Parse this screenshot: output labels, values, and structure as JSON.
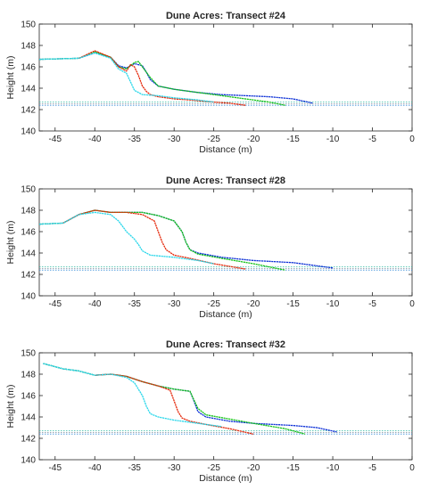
{
  "chart_data": [
    {
      "type": "line",
      "title": "Dune Acres: Transect #24",
      "xlabel": "Distance (m)",
      "ylabel": "Height (m)",
      "xlim": [
        -47,
        0
      ],
      "ylim": [
        140,
        150
      ],
      "xticks": [
        "-45",
        "-40",
        "-35",
        "-30",
        "-25",
        "-20",
        "-15",
        "-10",
        "-5",
        "0"
      ],
      "yticks": [
        "140",
        "142",
        "144",
        "146",
        "148",
        "150"
      ],
      "grid": false,
      "water_levels": [
        142.4,
        142.55,
        142.7
      ],
      "series": [
        {
          "color": "#0b2fd6",
          "x": [
            -47,
            -42,
            -40,
            -38,
            -37,
            -36,
            -35,
            -34,
            -33.5,
            -33,
            -32,
            -30,
            -27,
            -24,
            -21,
            -18,
            -15,
            -12.5
          ],
          "y": [
            146.7,
            146.8,
            147.3,
            146.9,
            146.1,
            145.9,
            146.3,
            146.1,
            145.5,
            144.8,
            144.2,
            143.9,
            143.6,
            143.4,
            143.3,
            143.2,
            143.0,
            142.6
          ]
        },
        {
          "color": "#15c21a",
          "x": [
            -47,
            -42,
            -40,
            -38,
            -37,
            -36,
            -35,
            -34.5,
            -34,
            -33,
            -32,
            -30,
            -27,
            -24,
            -21,
            -18,
            -16
          ],
          "y": [
            146.7,
            146.8,
            147.4,
            146.9,
            146.0,
            145.8,
            146.4,
            146.5,
            146.0,
            145.0,
            144.2,
            143.9,
            143.6,
            143.3,
            143.0,
            142.7,
            142.4
          ]
        },
        {
          "color": "#e52b0e",
          "x": [
            -42,
            -40,
            -38,
            -37,
            -36,
            -35.5,
            -35,
            -34.5,
            -34,
            -33.5,
            -33,
            -32.5,
            -32,
            -30,
            -28,
            -25,
            -23,
            -21
          ],
          "y": [
            146.8,
            147.5,
            146.9,
            146.0,
            145.6,
            146.2,
            146.0,
            145.2,
            144.2,
            143.7,
            143.4,
            143.3,
            143.2,
            143.0,
            142.9,
            142.7,
            142.6,
            142.4
          ]
        },
        {
          "color": "#2ad7ea",
          "x": [
            -47,
            -42,
            -40,
            -38,
            -37,
            -36,
            -35.5,
            -35,
            -34.5,
            -34,
            -32,
            -30,
            -27,
            -25
          ],
          "y": [
            146.7,
            146.8,
            147.3,
            146.8,
            145.8,
            145.4,
            144.6,
            143.8,
            143.6,
            143.4,
            143.3,
            143.1,
            142.9,
            142.7
          ]
        }
      ]
    },
    {
      "type": "line",
      "title": "Dune Acres: Transect #28",
      "xlabel": "Distance (m)",
      "ylabel": "Height (m)",
      "xlim": [
        -47,
        0
      ],
      "ylim": [
        140,
        150
      ],
      "xticks": [
        "-45",
        "-40",
        "-35",
        "-30",
        "-25",
        "-20",
        "-15",
        "-10",
        "-5",
        "0"
      ],
      "yticks": [
        "140",
        "142",
        "144",
        "146",
        "148",
        "150"
      ],
      "grid": false,
      "water_levels": [
        142.4,
        142.55,
        142.7
      ],
      "series": [
        {
          "color": "#0b2fd6",
          "x": [
            -47,
            -44,
            -42,
            -40,
            -38,
            -36,
            -34,
            -32,
            -30,
            -29,
            -28.5,
            -28,
            -27,
            -24,
            -20,
            -15,
            -10
          ],
          "y": [
            146.7,
            146.8,
            147.6,
            148.0,
            147.8,
            147.8,
            147.8,
            147.5,
            147.0,
            146.0,
            145.0,
            144.3,
            144.0,
            143.6,
            143.3,
            143.1,
            142.6
          ]
        },
        {
          "color": "#15c21a",
          "x": [
            -47,
            -44,
            -42,
            -40,
            -38,
            -36,
            -34,
            -32,
            -30,
            -29,
            -28.5,
            -28,
            -27,
            -24,
            -20,
            -16
          ],
          "y": [
            146.7,
            146.8,
            147.6,
            148.0,
            147.8,
            147.8,
            147.8,
            147.5,
            147.0,
            146.0,
            145.0,
            144.3,
            143.9,
            143.5,
            143.0,
            142.4
          ]
        },
        {
          "color": "#e52b0e",
          "x": [
            -44,
            -42,
            -40,
            -38,
            -36,
            -34,
            -32.5,
            -32,
            -31.5,
            -31,
            -30,
            -28,
            -25,
            -21
          ],
          "y": [
            146.8,
            147.6,
            148.0,
            147.8,
            147.8,
            147.6,
            147.0,
            146.0,
            145.0,
            144.3,
            143.8,
            143.5,
            143.0,
            142.5
          ]
        },
        {
          "color": "#2ad7ea",
          "x": [
            -47,
            -44,
            -42,
            -40,
            -38,
            -37,
            -36,
            -35,
            -34.5,
            -34,
            -33,
            -30,
            -27,
            -25
          ],
          "y": [
            146.7,
            146.8,
            147.6,
            147.8,
            147.6,
            147.0,
            146.0,
            145.3,
            144.8,
            144.2,
            143.8,
            143.6,
            143.3,
            143.0
          ]
        }
      ]
    },
    {
      "type": "line",
      "title": "Dune Acres: Transect #32",
      "xlabel": "Distance (m)",
      "ylabel": "Height (m)",
      "xlim": [
        -47,
        0
      ],
      "ylim": [
        140,
        150
      ],
      "xticks": [
        "-45",
        "-40",
        "-35",
        "-30",
        "-25",
        "-20",
        "-15",
        "-10",
        "-5",
        "0"
      ],
      "yticks": [
        "140",
        "142",
        "144",
        "146",
        "148",
        "150"
      ],
      "grid": false,
      "water_levels": [
        142.4,
        142.55,
        142.7
      ],
      "series": [
        {
          "color": "#0b2fd6",
          "x": [
            -46.5,
            -44,
            -42,
            -40,
            -38,
            -36,
            -34,
            -32,
            -30,
            -28,
            -27.5,
            -27,
            -26,
            -23,
            -20,
            -15,
            -12,
            -9.5
          ],
          "y": [
            149.0,
            148.5,
            148.3,
            147.9,
            148.0,
            147.8,
            147.3,
            146.9,
            146.6,
            146.4,
            145.5,
            144.5,
            144.0,
            143.6,
            143.4,
            143.2,
            143.0,
            142.6
          ]
        },
        {
          "color": "#15c21a",
          "x": [
            -46.5,
            -44,
            -42,
            -40,
            -38,
            -36,
            -34,
            -32,
            -30,
            -28,
            -27.5,
            -27,
            -26,
            -23,
            -20,
            -16,
            -13.5
          ],
          "y": [
            149.0,
            148.5,
            148.3,
            147.9,
            148.0,
            147.8,
            147.3,
            146.9,
            146.6,
            146.4,
            145.6,
            144.8,
            144.2,
            143.8,
            143.4,
            142.9,
            142.4
          ]
        },
        {
          "color": "#e52b0e",
          "x": [
            -40,
            -38,
            -36,
            -34,
            -32,
            -30.5,
            -30,
            -29.5,
            -29,
            -28,
            -26,
            -23,
            -20
          ],
          "y": [
            147.9,
            148.0,
            147.8,
            147.3,
            146.9,
            146.5,
            145.5,
            144.5,
            143.9,
            143.6,
            143.3,
            142.9,
            142.4
          ]
        },
        {
          "color": "#2ad7ea",
          "x": [
            -46.5,
            -44,
            -42,
            -40,
            -38,
            -36,
            -35,
            -34,
            -33.5,
            -33,
            -32,
            -30,
            -27,
            -24
          ],
          "y": [
            149.0,
            148.5,
            148.3,
            147.9,
            148.0,
            147.7,
            147.2,
            146.0,
            145.0,
            144.3,
            144.0,
            143.7,
            143.4,
            143.1
          ]
        }
      ]
    }
  ]
}
